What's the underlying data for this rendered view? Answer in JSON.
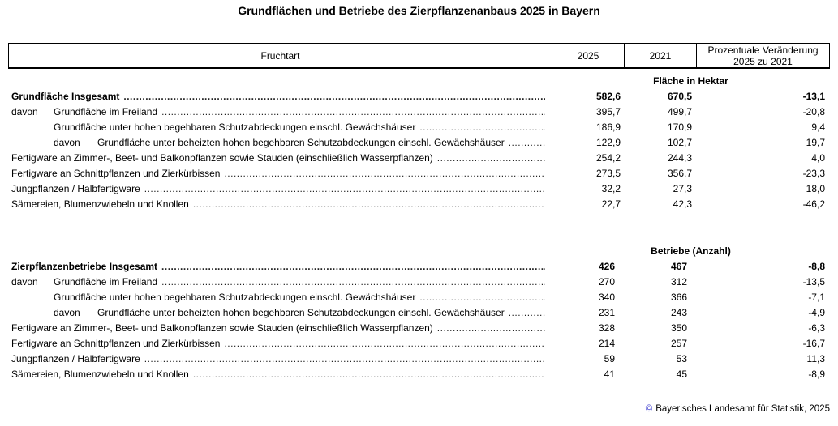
{
  "title": "Grundflächen und Betriebe des Zierpflanzenanbaus 2025 in Bayern",
  "colors": {
    "copyright_symbol": "#3333cc",
    "text": "#000000",
    "border": "#000000"
  },
  "table": {
    "columns": {
      "fruchtart": "Fruchtart",
      "y2025": "2025",
      "y2021": "2021",
      "change_line1": "Prozentuale Veränderung",
      "change_line2": "2025 zu 2021"
    }
  },
  "sections": [
    {
      "unit_header": "Fläche in Hektar",
      "rows": [
        {
          "bold": true,
          "indent": 0,
          "prefix": "",
          "label": "Grundfläche Insgesamt",
          "v2025": "582,6",
          "v2021": "670,5",
          "pct": "-13,1"
        },
        {
          "bold": false,
          "indent": 1,
          "prefix": "davon",
          "label": "Grundfläche im Freiland",
          "v2025": "395,7",
          "v2021": "499,7",
          "pct": "-20,8"
        },
        {
          "bold": false,
          "indent": 1,
          "prefix": "",
          "label": "Grundfläche unter hohen begehbaren Schutzabdeckungen einschl. Gewächshäuser",
          "v2025": "186,9",
          "v2021": "170,9",
          "pct": "9,4"
        },
        {
          "bold": false,
          "indent": 2,
          "prefix": "davon",
          "label": "Grundfläche unter beheizten hohen begehbaren Schutzabdeckungen einschl. Gewächshäuser",
          "v2025": "122,9",
          "v2021": "102,7",
          "pct": "19,7"
        },
        {
          "bold": false,
          "indent": 0,
          "prefix": "",
          "label": "Fertigware an Zimmer-, Beet- und Balkonpflanzen sowie Stauden (einschließlich Wasserpflanzen)",
          "v2025": "254,2",
          "v2021": "244,3",
          "pct": "4,0"
        },
        {
          "bold": false,
          "indent": 0,
          "prefix": "",
          "label": "Fertigware an Schnittpflanzen und Zierkürbissen",
          "v2025": "273,5",
          "v2021": "356,7",
          "pct": "-23,3"
        },
        {
          "bold": false,
          "indent": 0,
          "prefix": "",
          "label": "Jungpflanzen / Halbfertigware",
          "v2025": "32,2",
          "v2021": "27,3",
          "pct": "18,0"
        },
        {
          "bold": false,
          "indent": 0,
          "prefix": "",
          "label": "Sämereien, Blumenzwiebeln und Knollen",
          "v2025": "22,7",
          "v2021": "42,3",
          "pct": "-46,2"
        }
      ]
    },
    {
      "unit_header": "Betriebe (Anzahl)",
      "rows": [
        {
          "bold": true,
          "indent": 0,
          "prefix": "",
          "label": "Zierpflanzenbetriebe Insgesamt",
          "v2025": "426",
          "v2021": "467",
          "pct": "-8,8"
        },
        {
          "bold": false,
          "indent": 1,
          "prefix": "davon",
          "label": "Grundfläche im Freiland",
          "v2025": "270",
          "v2021": "312",
          "pct": "-13,5"
        },
        {
          "bold": false,
          "indent": 1,
          "prefix": "",
          "label": "Grundfläche unter hohen begehbaren Schutzabdeckungen einschl. Gewächshäuser",
          "v2025": "340",
          "v2021": "366",
          "pct": "-7,1"
        },
        {
          "bold": false,
          "indent": 2,
          "prefix": "davon",
          "label": "Grundfläche unter beheizten hohen begehbaren Schutzabdeckungen einschl. Gewächshäuser",
          "v2025": "231",
          "v2021": "243",
          "pct": "-4,9"
        },
        {
          "bold": false,
          "indent": 0,
          "prefix": "",
          "label": "Fertigware an Zimmer-, Beet- und Balkonpflanzen sowie Stauden (einschließlich Wasserpflanzen)",
          "v2025": "328",
          "v2021": "350",
          "pct": "-6,3"
        },
        {
          "bold": false,
          "indent": 0,
          "prefix": "",
          "label": "Fertigware an Schnittpflanzen und Zierkürbissen",
          "v2025": "214",
          "v2021": "257",
          "pct": "-16,7"
        },
        {
          "bold": false,
          "indent": 0,
          "prefix": "",
          "label": "Jungpflanzen / Halbfertigware",
          "v2025": "59",
          "v2021": "53",
          "pct": "11,3"
        },
        {
          "bold": false,
          "indent": 0,
          "prefix": "",
          "label": "Sämereien, Blumenzwiebeln und Knollen",
          "v2025": "41",
          "v2021": "45",
          "pct": "-8,9"
        }
      ]
    }
  ],
  "footer": {
    "symbol": "©",
    "text": "Bayerisches Landesamt für Statistik, 2025"
  }
}
